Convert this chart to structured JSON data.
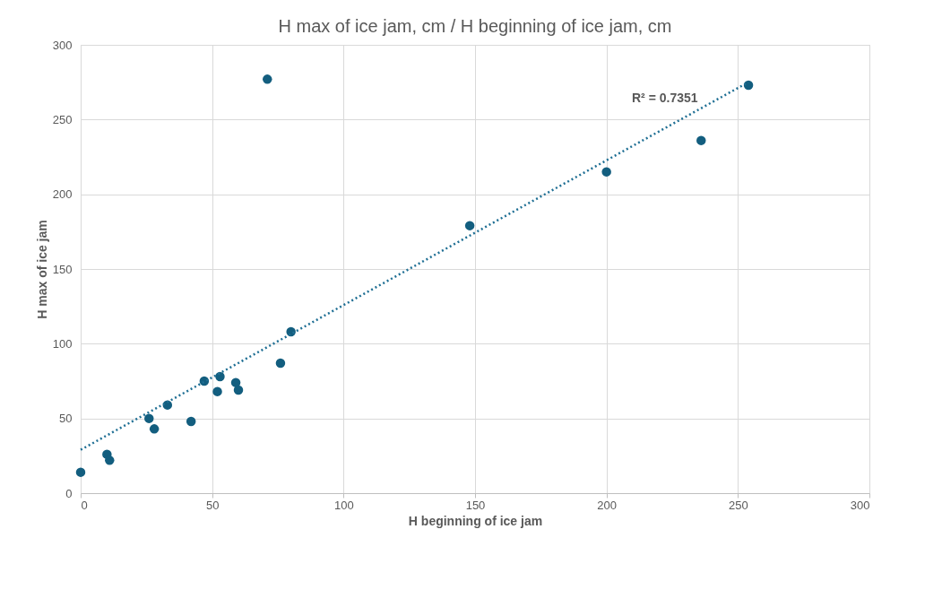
{
  "chart_data": {
    "type": "scatter",
    "title": "H max of ice jam, cm / H beginning of ice jam, cm",
    "xlabel": "H beginning of ice jam",
    "ylabel": "H max of ice jam",
    "xlim": [
      0,
      300
    ],
    "xticks": [
      0,
      50,
      100,
      150,
      200,
      250,
      300
    ],
    "ylim": [
      0,
      300
    ],
    "yticks": [
      0,
      50,
      100,
      150,
      200,
      250,
      300
    ],
    "grid": true,
    "marker": "circle",
    "series": [
      {
        "color": "#135e7f",
        "x": [
          0,
          10,
          11,
          26,
          28,
          33,
          42,
          47,
          52,
          53,
          59,
          60,
          71,
          76,
          80,
          148,
          200,
          236,
          254
        ],
        "values": [
          14,
          26,
          22,
          50,
          43,
          59,
          48,
          75,
          68,
          78,
          74,
          69,
          277,
          87,
          108,
          179,
          215,
          236,
          273
        ]
      },
      {
        "type": "line",
        "color": "#1f6f94",
        "line_style": "dotted",
        "marker": "none",
        "x": [
          0,
          254
        ],
        "values": [
          29,
          275
        ]
      }
    ],
    "annotations": [
      "R² = 0.7351"
    ]
  }
}
